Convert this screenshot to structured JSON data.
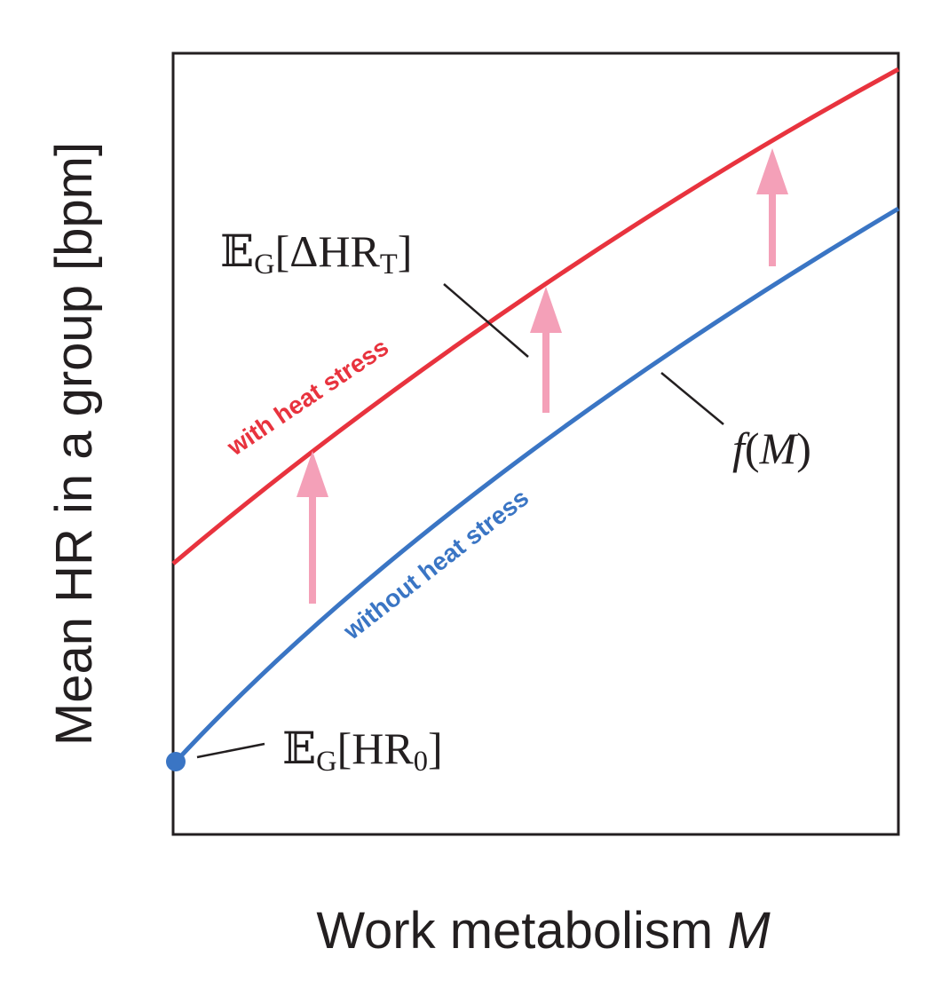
{
  "y_axis_label": "Mean HR in a group [bpm]",
  "x_axis_label": {
    "parts": [
      {
        "text": "Work metabolism "
      },
      {
        "text": "M",
        "italic": true
      }
    ]
  },
  "curves": [
    {
      "label": "with heat stress",
      "color": "#e8333e"
    },
    {
      "label": "without heat stress",
      "color": "#3a75c4"
    }
  ],
  "annotations": [
    {
      "parts": [
        {
          "text": "𝔼"
        },
        {
          "text": "G",
          "sub": true
        },
        {
          "text": "[ΔHR"
        },
        {
          "text": "T",
          "sub": true
        },
        {
          "text": "]"
        }
      ]
    },
    {
      "parts": [
        {
          "text": "f",
          "italic": true
        },
        {
          "text": "("
        },
        {
          "text": "M",
          "italic": true
        },
        {
          "text": ")"
        }
      ]
    },
    {
      "parts": [
        {
          "text": "𝔼"
        },
        {
          "text": "G",
          "sub": true
        },
        {
          "text": "[HR"
        },
        {
          "text": "0",
          "sub": true
        },
        {
          "text": "]"
        }
      ]
    }
  ]
}
